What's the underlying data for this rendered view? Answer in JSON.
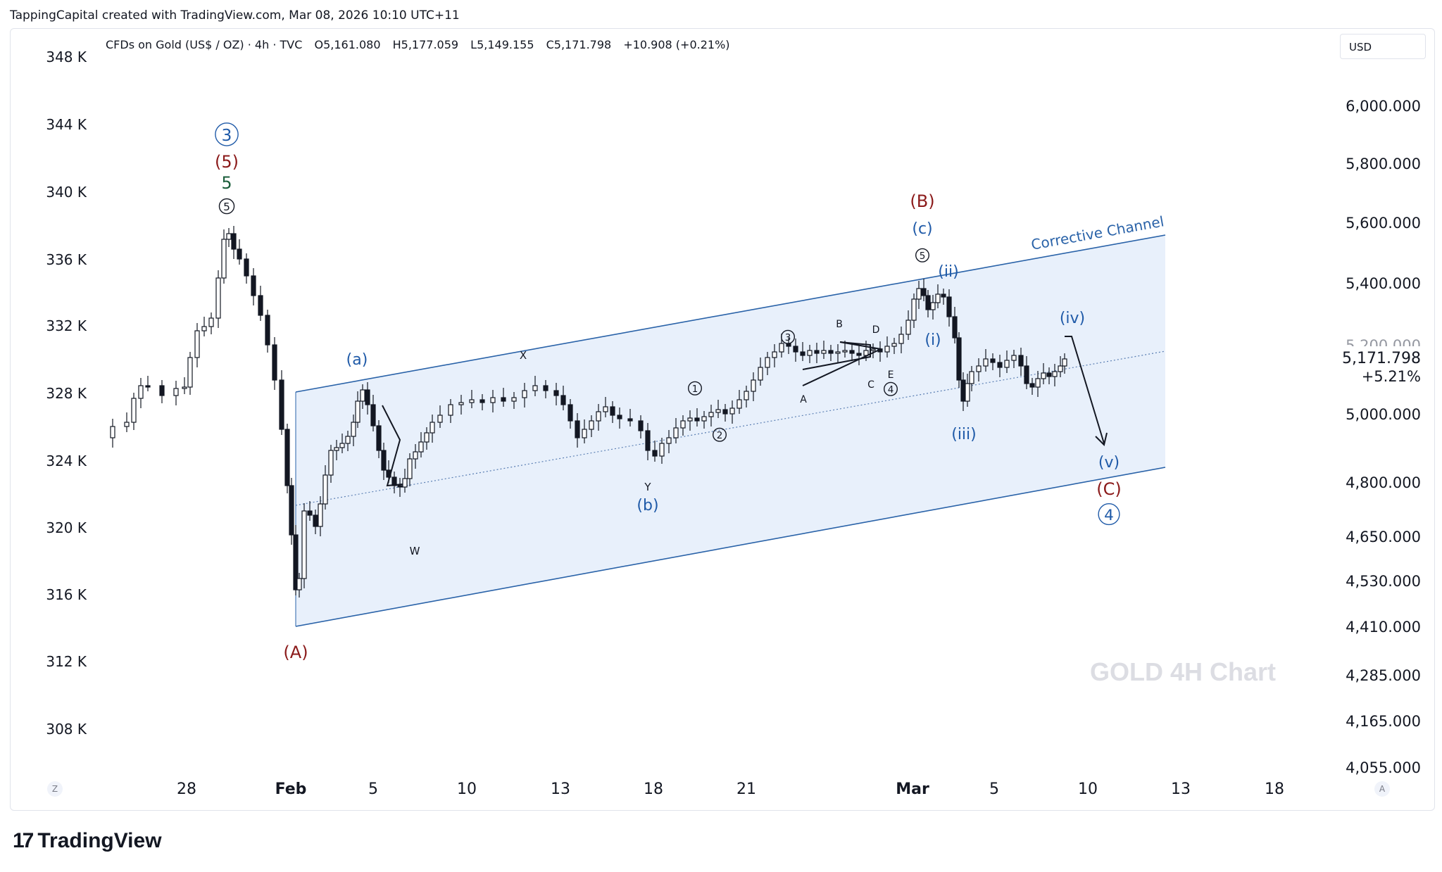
{
  "header": {
    "credit": "TappingCapital created with TradingView.com, Mar 08, 2026 10:10 UTC+11"
  },
  "legend": {
    "symbol": "CFDs on Gold (US$ / OZ) · 4h · TVC",
    "open": "O5,161.080",
    "high": "H5,177.059",
    "low": "L5,149.155",
    "close": "C5,171.798",
    "change": "+10.908 (+0.21%)"
  },
  "toolbar": {
    "currency": "USD",
    "left_mode": "Z",
    "right_mode": "A"
  },
  "footer": {
    "brand": "TradingView"
  },
  "colors": {
    "channel_fill": "#e8f0fb",
    "channel_line": "#2962a8",
    "label_blue": "#1f5aa8",
    "label_red": "#8b1a1a",
    "label_green": "#1b5e3b"
  },
  "chart_data": {
    "type": "candlestick",
    "title": "GOLD 4H Chart",
    "x_ticks": [
      "28",
      "Feb",
      "5",
      "10",
      "13",
      "18",
      "21",
      "Mar",
      "5",
      "10",
      "13",
      "18"
    ],
    "left_axis_ticks": [
      "348 K",
      "344 K",
      "340 K",
      "336 K",
      "332 K",
      "328 K",
      "324 K",
      "320 K",
      "316 K",
      "312 K",
      "308 K"
    ],
    "right_axis_ticks": [
      "6,000.000",
      "5,800.000",
      "5,600.000",
      "5,400.000",
      "5,200.000",
      "5,000.000",
      "4,800.000",
      "4,650.000",
      "4,530.000",
      "4,410.000",
      "4,285.000",
      "4,165.000",
      "4,055.000"
    ],
    "last_price": "5,171.798",
    "last_change_pct": "+5.21%",
    "channel_label": "Corrective Channel",
    "price_path": [
      [
        140,
        622
      ],
      [
        160,
        606
      ],
      [
        180,
        600
      ],
      [
        190,
        566
      ],
      [
        200,
        548
      ],
      [
        210,
        548
      ],
      [
        230,
        562
      ],
      [
        250,
        552
      ],
      [
        262,
        550
      ],
      [
        270,
        508
      ],
      [
        280,
        470
      ],
      [
        290,
        464
      ],
      [
        300,
        452
      ],
      [
        310,
        395
      ],
      [
        318,
        340
      ],
      [
        325,
        332
      ],
      [
        332,
        354
      ],
      [
        340,
        368
      ],
      [
        350,
        392
      ],
      [
        360,
        420
      ],
      [
        370,
        448
      ],
      [
        380,
        490
      ],
      [
        390,
        540
      ],
      [
        400,
        610
      ],
      [
        408,
        690
      ],
      [
        414,
        760
      ],
      [
        420,
        838
      ],
      [
        425,
        822
      ],
      [
        432,
        726
      ],
      [
        440,
        732
      ],
      [
        448,
        748
      ],
      [
        455,
        716
      ],
      [
        462,
        675
      ],
      [
        470,
        640
      ],
      [
        478,
        636
      ],
      [
        486,
        630
      ],
      [
        494,
        620
      ],
      [
        502,
        600
      ],
      [
        508,
        570
      ],
      [
        515,
        554
      ],
      [
        522,
        575
      ],
      [
        530,
        605
      ],
      [
        538,
        640
      ],
      [
        545,
        668
      ],
      [
        552,
        678
      ],
      [
        560,
        690
      ],
      [
        568,
        692
      ],
      [
        575,
        680
      ],
      [
        582,
        652
      ],
      [
        590,
        642
      ],
      [
        598,
        628
      ],
      [
        606,
        615
      ],
      [
        614,
        600
      ],
      [
        625,
        590
      ],
      [
        640,
        575
      ],
      [
        655,
        572
      ],
      [
        670,
        568
      ],
      [
        685,
        572
      ],
      [
        700,
        565
      ],
      [
        715,
        570
      ],
      [
        730,
        565
      ],
      [
        745,
        555
      ],
      [
        760,
        548
      ],
      [
        775,
        555
      ],
      [
        790,
        562
      ],
      [
        800,
        575
      ],
      [
        810,
        598
      ],
      [
        820,
        622
      ],
      [
        830,
        610
      ],
      [
        840,
        598
      ],
      [
        850,
        585
      ],
      [
        860,
        578
      ],
      [
        870,
        590
      ],
      [
        880,
        595
      ],
      [
        895,
        598
      ],
      [
        910,
        612
      ],
      [
        920,
        640
      ],
      [
        930,
        648
      ],
      [
        940,
        630
      ],
      [
        950,
        622
      ],
      [
        960,
        608
      ],
      [
        970,
        598
      ],
      [
        980,
        594
      ],
      [
        990,
        598
      ],
      [
        1000,
        592
      ],
      [
        1010,
        586
      ],
      [
        1020,
        582
      ],
      [
        1030,
        588
      ],
      [
        1040,
        580
      ],
      [
        1050,
        568
      ],
      [
        1060,
        556
      ],
      [
        1070,
        540
      ],
      [
        1080,
        522
      ],
      [
        1090,
        508
      ],
      [
        1100,
        500
      ],
      [
        1110,
        488
      ],
      [
        1120,
        492
      ],
      [
        1130,
        500
      ],
      [
        1140,
        505
      ],
      [
        1150,
        498
      ],
      [
        1160,
        502
      ],
      [
        1170,
        498
      ],
      [
        1180,
        502
      ],
      [
        1190,
        500
      ],
      [
        1200,
        498
      ],
      [
        1210,
        502
      ],
      [
        1220,
        505
      ],
      [
        1230,
        498
      ],
      [
        1240,
        496
      ],
      [
        1250,
        500
      ],
      [
        1260,
        492
      ],
      [
        1270,
        488
      ],
      [
        1280,
        475
      ],
      [
        1290,
        455
      ],
      [
        1298,
        425
      ],
      [
        1305,
        410
      ],
      [
        1312,
        420
      ],
      [
        1318,
        440
      ],
      [
        1325,
        430
      ],
      [
        1332,
        418
      ],
      [
        1340,
        422
      ],
      [
        1348,
        450
      ],
      [
        1356,
        480
      ],
      [
        1362,
        540
      ],
      [
        1368,
        570
      ],
      [
        1374,
        545
      ],
      [
        1380,
        528
      ],
      [
        1390,
        520
      ],
      [
        1400,
        510
      ],
      [
        1410,
        515
      ],
      [
        1420,
        522
      ],
      [
        1430,
        512
      ],
      [
        1440,
        505
      ],
      [
        1450,
        520
      ],
      [
        1458,
        545
      ],
      [
        1466,
        550
      ],
      [
        1474,
        538
      ],
      [
        1482,
        530
      ],
      [
        1490,
        535
      ],
      [
        1498,
        528
      ],
      [
        1506,
        520
      ],
      [
        1512,
        510
      ]
    ],
    "wave_labels": [
      {
        "text": "3",
        "circled": true,
        "x": 322,
        "y": 200,
        "color": "blue",
        "size": 26
      },
      {
        "text": "(5)",
        "circled": false,
        "x": 322,
        "y": 238,
        "color": "red",
        "size": 24
      },
      {
        "text": "5",
        "circled": false,
        "x": 322,
        "y": 268,
        "color": "green",
        "size": 24
      },
      {
        "text": "5",
        "circled": true,
        "x": 322,
        "y": 299,
        "color": "black",
        "size": 17
      },
      {
        "text": "(A)",
        "circled": false,
        "x": 420,
        "y": 935,
        "color": "red",
        "size": 24
      },
      {
        "text": "(a)",
        "circled": false,
        "x": 507,
        "y": 518,
        "color": "blue",
        "size": 22
      },
      {
        "text": "W",
        "circled": false,
        "x": 589,
        "y": 788,
        "color": "black",
        "size": 15
      },
      {
        "text": "X",
        "circled": false,
        "x": 743,
        "y": 510,
        "color": "black",
        "size": 15
      },
      {
        "text": "Y",
        "circled": false,
        "x": 920,
        "y": 697,
        "color": "black",
        "size": 15
      },
      {
        "text": "(b)",
        "circled": false,
        "x": 920,
        "y": 725,
        "color": "blue",
        "size": 22
      },
      {
        "text": "1",
        "circled": true,
        "x": 987,
        "y": 557,
        "color": "black",
        "size": 15
      },
      {
        "text": "2",
        "circled": true,
        "x": 1022,
        "y": 623,
        "color": "black",
        "size": 15
      },
      {
        "text": "3",
        "circled": true,
        "x": 1119,
        "y": 484,
        "color": "black",
        "size": 15
      },
      {
        "text": "A",
        "circled": false,
        "x": 1141,
        "y": 572,
        "color": "black",
        "size": 14
      },
      {
        "text": "B",
        "circled": false,
        "x": 1192,
        "y": 465,
        "color": "black",
        "size": 14
      },
      {
        "text": "C",
        "circled": false,
        "x": 1237,
        "y": 551,
        "color": "black",
        "size": 14
      },
      {
        "text": "D",
        "circled": false,
        "x": 1244,
        "y": 473,
        "color": "black",
        "size": 14
      },
      {
        "text": "E",
        "circled": false,
        "x": 1265,
        "y": 537,
        "color": "black",
        "size": 14
      },
      {
        "text": "4",
        "circled": true,
        "x": 1265,
        "y": 558,
        "color": "black",
        "size": 15
      },
      {
        "text": "(B)",
        "circled": false,
        "x": 1310,
        "y": 294,
        "color": "red",
        "size": 24
      },
      {
        "text": "(c)",
        "circled": false,
        "x": 1310,
        "y": 332,
        "color": "blue",
        "size": 22
      },
      {
        "text": "5",
        "circled": true,
        "x": 1310,
        "y": 368,
        "color": "black",
        "size": 15
      },
      {
        "text": "(ii)",
        "circled": false,
        "x": 1347,
        "y": 393,
        "color": "blue",
        "size": 22
      },
      {
        "text": "(i)",
        "circled": false,
        "x": 1325,
        "y": 490,
        "color": "blue",
        "size": 22
      },
      {
        "text": "(iii)",
        "circled": false,
        "x": 1369,
        "y": 624,
        "color": "blue",
        "size": 22
      },
      {
        "text": "(iv)",
        "circled": false,
        "x": 1523,
        "y": 459,
        "color": "blue",
        "size": 22
      },
      {
        "text": "(v)",
        "circled": false,
        "x": 1575,
        "y": 664,
        "color": "blue",
        "size": 22
      },
      {
        "text": "(C)",
        "circled": false,
        "x": 1575,
        "y": 703,
        "color": "red",
        "size": 24
      },
      {
        "text": "4",
        "circled": true,
        "x": 1575,
        "y": 739,
        "color": "blue",
        "size": 24
      }
    ]
  }
}
